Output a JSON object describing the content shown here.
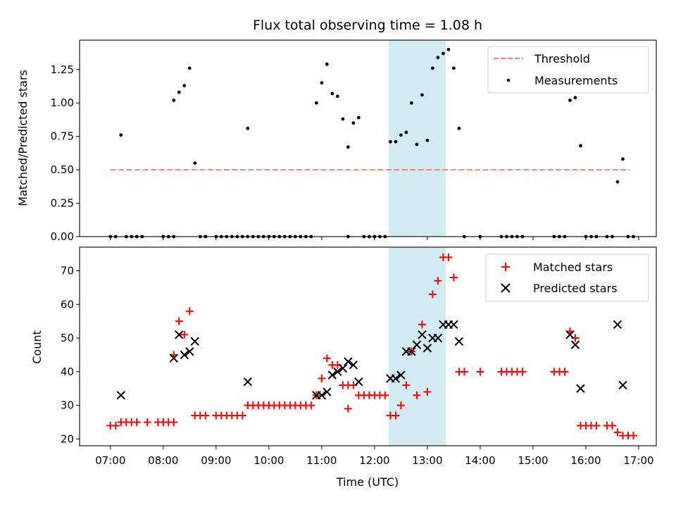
{
  "chart_data": [
    {
      "type": "scatter",
      "title": "Flux total observing time = 1.08 h",
      "xlabel": "",
      "ylabel": "Matched/Predicted stars",
      "ylim": [
        0,
        1.47
      ],
      "xlim": [
        "06:25",
        "17:20"
      ],
      "yticks": [
        "0.00",
        "0.25",
        "0.50",
        "0.75",
        "1.00",
        "1.25"
      ],
      "highlight_span": {
        "from": "12:16",
        "to": "13:21",
        "color": "#add8e6"
      },
      "legend_position": "upper right",
      "series": [
        {
          "name": "Threshold",
          "kind": "dashed-line",
          "color": "#ff7f7f",
          "points": [
            {
              "x": "07:00",
              "y": 0.5
            },
            {
              "x": "16:50",
              "y": 0.5
            }
          ]
        },
        {
          "name": "Measurements",
          "kind": "dots",
          "color": "#000000",
          "points": [
            {
              "x": "07:00",
              "y": 0
            },
            {
              "x": "07:06",
              "y": 0
            },
            {
              "x": "07:12",
              "y": 0.76
            },
            {
              "x": "07:18",
              "y": 0
            },
            {
              "x": "07:24",
              "y": 0
            },
            {
              "x": "07:30",
              "y": 0
            },
            {
              "x": "07:36",
              "y": 0
            },
            {
              "x": "08:00",
              "y": 0
            },
            {
              "x": "08:06",
              "y": 0
            },
            {
              "x": "08:12",
              "y": 0
            },
            {
              "x": "08:12",
              "y": 1.02
            },
            {
              "x": "08:18",
              "y": 1.08
            },
            {
              "x": "08:24",
              "y": 1.13
            },
            {
              "x": "08:30",
              "y": 1.26
            },
            {
              "x": "08:36",
              "y": 0.55
            },
            {
              "x": "08:42",
              "y": 0
            },
            {
              "x": "08:48",
              "y": 0
            },
            {
              "x": "09:00",
              "y": 0
            },
            {
              "x": "09:06",
              "y": 0
            },
            {
              "x": "09:12",
              "y": 0
            },
            {
              "x": "09:18",
              "y": 0
            },
            {
              "x": "09:24",
              "y": 0
            },
            {
              "x": "09:30",
              "y": 0
            },
            {
              "x": "09:36",
              "y": 0
            },
            {
              "x": "09:36",
              "y": 0.81
            },
            {
              "x": "09:42",
              "y": 0
            },
            {
              "x": "09:48",
              "y": 0
            },
            {
              "x": "09:54",
              "y": 0
            },
            {
              "x": "10:00",
              "y": 0
            },
            {
              "x": "10:06",
              "y": 0
            },
            {
              "x": "10:12",
              "y": 0
            },
            {
              "x": "10:18",
              "y": 0
            },
            {
              "x": "10:24",
              "y": 0
            },
            {
              "x": "10:30",
              "y": 0
            },
            {
              "x": "10:36",
              "y": 0
            },
            {
              "x": "10:42",
              "y": 0
            },
            {
              "x": "10:48",
              "y": 0
            },
            {
              "x": "10:54",
              "y": 1.0
            },
            {
              "x": "11:00",
              "y": 1.15
            },
            {
              "x": "11:06",
              "y": 1.29
            },
            {
              "x": "11:12",
              "y": 1.07
            },
            {
              "x": "11:18",
              "y": 1.05
            },
            {
              "x": "11:24",
              "y": 0.88
            },
            {
              "x": "11:30",
              "y": 0
            },
            {
              "x": "11:30",
              "y": 0.67
            },
            {
              "x": "11:36",
              "y": 0.85
            },
            {
              "x": "11:42",
              "y": 0.89
            },
            {
              "x": "11:48",
              "y": 0
            },
            {
              "x": "11:54",
              "y": 0
            },
            {
              "x": "12:00",
              "y": 0
            },
            {
              "x": "12:06",
              "y": 0
            },
            {
              "x": "12:12",
              "y": 0
            },
            {
              "x": "12:18",
              "y": 0.71
            },
            {
              "x": "12:24",
              "y": 0.71
            },
            {
              "x": "12:30",
              "y": 0.76
            },
            {
              "x": "12:36",
              "y": 0.78
            },
            {
              "x": "12:42",
              "y": 1.0
            },
            {
              "x": "12:48",
              "y": 0.69
            },
            {
              "x": "12:54",
              "y": 1.06
            },
            {
              "x": "13:00",
              "y": 0.72
            },
            {
              "x": "13:06",
              "y": 1.26
            },
            {
              "x": "13:12",
              "y": 1.34
            },
            {
              "x": "13:18",
              "y": 1.37
            },
            {
              "x": "13:24",
              "y": 1.4
            },
            {
              "x": "13:30",
              "y": 1.26
            },
            {
              "x": "13:36",
              "y": 0.81
            },
            {
              "x": "13:42",
              "y": 0
            },
            {
              "x": "14:00",
              "y": 0
            },
            {
              "x": "14:24",
              "y": 0
            },
            {
              "x": "14:30",
              "y": 0
            },
            {
              "x": "14:36",
              "y": 0
            },
            {
              "x": "14:42",
              "y": 0
            },
            {
              "x": "14:48",
              "y": 0
            },
            {
              "x": "15:24",
              "y": 0
            },
            {
              "x": "15:30",
              "y": 0
            },
            {
              "x": "15:36",
              "y": 0
            },
            {
              "x": "15:42",
              "y": 1.02
            },
            {
              "x": "15:48",
              "y": 1.04
            },
            {
              "x": "15:54",
              "y": 0.68
            },
            {
              "x": "16:00",
              "y": 0
            },
            {
              "x": "16:06",
              "y": 0
            },
            {
              "x": "16:12",
              "y": 0
            },
            {
              "x": "16:24",
              "y": 0
            },
            {
              "x": "16:30",
              "y": 0
            },
            {
              "x": "16:36",
              "y": 0.41
            },
            {
              "x": "16:42",
              "y": 0.58
            },
            {
              "x": "16:48",
              "y": 0
            },
            {
              "x": "16:54",
              "y": 0
            }
          ]
        }
      ]
    },
    {
      "type": "scatter",
      "title": "",
      "xlabel": "Time (UTC)",
      "ylabel": "Count",
      "ylim": [
        18,
        77
      ],
      "xlim": [
        "06:25",
        "17:20"
      ],
      "yticks": [
        "20",
        "30",
        "40",
        "50",
        "60",
        "70"
      ],
      "xticks": [
        "07:00",
        "08:00",
        "09:00",
        "10:00",
        "11:00",
        "12:00",
        "13:00",
        "14:00",
        "15:00",
        "16:00",
        "17:00"
      ],
      "highlight_span": {
        "from": "12:16",
        "to": "13:21",
        "color": "#add8e6"
      },
      "legend_position": "upper right",
      "series": [
        {
          "name": "Matched stars",
          "kind": "plus",
          "color": "#ff0000",
          "points": [
            {
              "x": "07:00",
              "y": 24
            },
            {
              "x": "07:06",
              "y": 24
            },
            {
              "x": "07:12",
              "y": 25
            },
            {
              "x": "07:18",
              "y": 25
            },
            {
              "x": "07:24",
              "y": 25
            },
            {
              "x": "07:30",
              "y": 25
            },
            {
              "x": "07:42",
              "y": 25
            },
            {
              "x": "07:54",
              "y": 25
            },
            {
              "x": "08:00",
              "y": 25
            },
            {
              "x": "08:06",
              "y": 25
            },
            {
              "x": "08:12",
              "y": 25
            },
            {
              "x": "08:12",
              "y": 45
            },
            {
              "x": "08:18",
              "y": 55
            },
            {
              "x": "08:24",
              "y": 51
            },
            {
              "x": "08:30",
              "y": 58
            },
            {
              "x": "08:36",
              "y": 27
            },
            {
              "x": "08:42",
              "y": 27
            },
            {
              "x": "08:48",
              "y": 27
            },
            {
              "x": "09:00",
              "y": 27
            },
            {
              "x": "09:06",
              "y": 27
            },
            {
              "x": "09:12",
              "y": 27
            },
            {
              "x": "09:18",
              "y": 27
            },
            {
              "x": "09:24",
              "y": 27
            },
            {
              "x": "09:30",
              "y": 27
            },
            {
              "x": "09:36",
              "y": 30
            },
            {
              "x": "09:42",
              "y": 30
            },
            {
              "x": "09:48",
              "y": 30
            },
            {
              "x": "09:54",
              "y": 30
            },
            {
              "x": "10:00",
              "y": 30
            },
            {
              "x": "10:06",
              "y": 30
            },
            {
              "x": "10:12",
              "y": 30
            },
            {
              "x": "10:18",
              "y": 30
            },
            {
              "x": "10:24",
              "y": 30
            },
            {
              "x": "10:30",
              "y": 30
            },
            {
              "x": "10:36",
              "y": 30
            },
            {
              "x": "10:42",
              "y": 30
            },
            {
              "x": "10:48",
              "y": 30
            },
            {
              "x": "10:54",
              "y": 33
            },
            {
              "x": "11:00",
              "y": 38
            },
            {
              "x": "11:06",
              "y": 44
            },
            {
              "x": "11:12",
              "y": 42
            },
            {
              "x": "11:18",
              "y": 42
            },
            {
              "x": "11:24",
              "y": 36
            },
            {
              "x": "11:30",
              "y": 36
            },
            {
              "x": "11:30",
              "y": 29
            },
            {
              "x": "11:36",
              "y": 36
            },
            {
              "x": "11:42",
              "y": 33
            },
            {
              "x": "11:48",
              "y": 33
            },
            {
              "x": "11:54",
              "y": 33
            },
            {
              "x": "12:00",
              "y": 33
            },
            {
              "x": "12:06",
              "y": 33
            },
            {
              "x": "12:12",
              "y": 33
            },
            {
              "x": "12:18",
              "y": 27
            },
            {
              "x": "12:24",
              "y": 27
            },
            {
              "x": "12:30",
              "y": 30
            },
            {
              "x": "12:36",
              "y": 36
            },
            {
              "x": "12:42",
              "y": 46
            },
            {
              "x": "12:48",
              "y": 33
            },
            {
              "x": "12:54",
              "y": 54
            },
            {
              "x": "13:00",
              "y": 34
            },
            {
              "x": "13:06",
              "y": 63
            },
            {
              "x": "13:12",
              "y": 67
            },
            {
              "x": "13:18",
              "y": 74
            },
            {
              "x": "13:24",
              "y": 74
            },
            {
              "x": "13:30",
              "y": 68
            },
            {
              "x": "13:36",
              "y": 40
            },
            {
              "x": "13:42",
              "y": 40
            },
            {
              "x": "14:00",
              "y": 40
            },
            {
              "x": "14:24",
              "y": 40
            },
            {
              "x": "14:30",
              "y": 40
            },
            {
              "x": "14:36",
              "y": 40
            },
            {
              "x": "14:42",
              "y": 40
            },
            {
              "x": "14:48",
              "y": 40
            },
            {
              "x": "15:24",
              "y": 40
            },
            {
              "x": "15:30",
              "y": 40
            },
            {
              "x": "15:36",
              "y": 40
            },
            {
              "x": "15:42",
              "y": 52
            },
            {
              "x": "15:48",
              "y": 50
            },
            {
              "x": "15:54",
              "y": 24
            },
            {
              "x": "16:00",
              "y": 24
            },
            {
              "x": "16:06",
              "y": 24
            },
            {
              "x": "16:12",
              "y": 24
            },
            {
              "x": "16:24",
              "y": 24
            },
            {
              "x": "16:30",
              "y": 24
            },
            {
              "x": "16:36",
              "y": 22
            },
            {
              "x": "16:42",
              "y": 21
            },
            {
              "x": "16:48",
              "y": 21
            },
            {
              "x": "16:54",
              "y": 21
            }
          ]
        },
        {
          "name": "Predicted stars",
          "kind": "x",
          "color": "#000000",
          "points": [
            {
              "x": "07:12",
              "y": 33
            },
            {
              "x": "08:12",
              "y": 44
            },
            {
              "x": "08:18",
              "y": 51
            },
            {
              "x": "08:24",
              "y": 45
            },
            {
              "x": "08:30",
              "y": 46
            },
            {
              "x": "08:36",
              "y": 49
            },
            {
              "x": "09:36",
              "y": 37
            },
            {
              "x": "10:54",
              "y": 33
            },
            {
              "x": "11:00",
              "y": 33
            },
            {
              "x": "11:06",
              "y": 34
            },
            {
              "x": "11:12",
              "y": 39
            },
            {
              "x": "11:18",
              "y": 40
            },
            {
              "x": "11:24",
              "y": 41
            },
            {
              "x": "11:30",
              "y": 43
            },
            {
              "x": "11:36",
              "y": 42
            },
            {
              "x": "11:42",
              "y": 37
            },
            {
              "x": "12:18",
              "y": 38
            },
            {
              "x": "12:24",
              "y": 38
            },
            {
              "x": "12:30",
              "y": 39
            },
            {
              "x": "12:36",
              "y": 46
            },
            {
              "x": "12:42",
              "y": 46
            },
            {
              "x": "12:48",
              "y": 48
            },
            {
              "x": "12:54",
              "y": 51
            },
            {
              "x": "13:00",
              "y": 47
            },
            {
              "x": "13:06",
              "y": 50
            },
            {
              "x": "13:12",
              "y": 50
            },
            {
              "x": "13:18",
              "y": 54
            },
            {
              "x": "13:24",
              "y": 54
            },
            {
              "x": "13:30",
              "y": 54
            },
            {
              "x": "13:36",
              "y": 49
            },
            {
              "x": "15:42",
              "y": 51
            },
            {
              "x": "15:48",
              "y": 48
            },
            {
              "x": "15:54",
              "y": 35
            },
            {
              "x": "16:36",
              "y": 54
            },
            {
              "x": "16:42",
              "y": 36
            }
          ]
        }
      ]
    }
  ]
}
